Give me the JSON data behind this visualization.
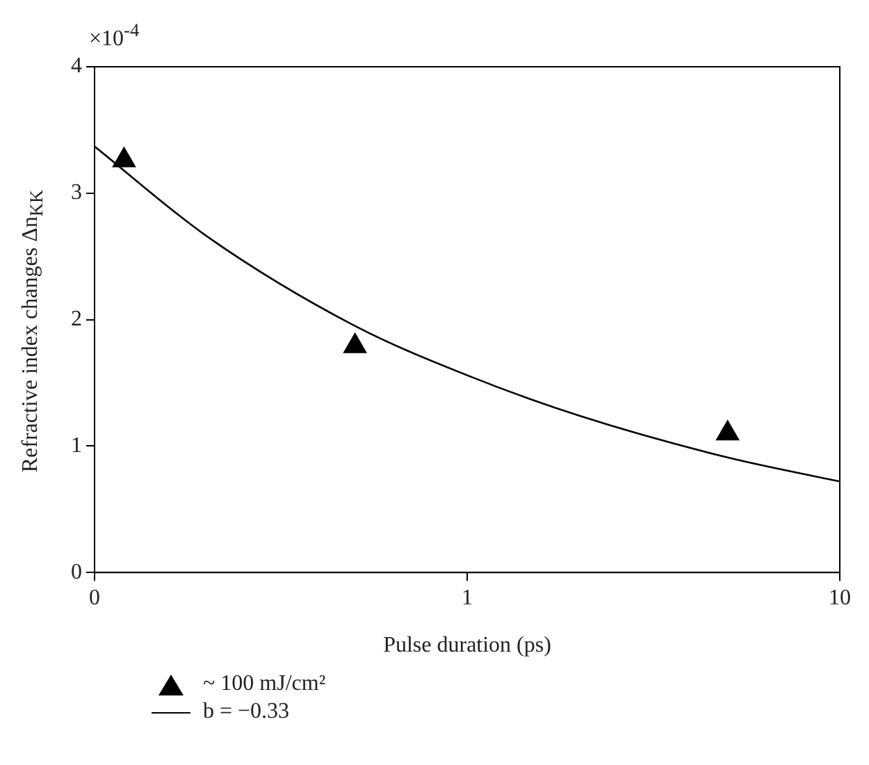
{
  "chart_data": {
    "type": "scatter",
    "xlabel": "Pulse duration (ps)",
    "ylabel": "Refractive index changes Δn$_{KK}$",
    "annotations": [
      "×10$^{-4}$"
    ],
    "series": [
      {
        "name": "~ 100 mJ/cm²",
        "color": "#000000",
        "marker": "triangle",
        "x": [
          0.12,
          0.5,
          5
        ],
        "values": [
          3.26,
          1.79,
          1.1
        ]
      },
      {
        "name": "b = −0.33",
        "type": "line",
        "color": "#000000",
        "marker": "none",
        "line_style": "solid",
        "x": [
          0.1,
          0.2,
          0.5,
          1,
          2,
          5,
          10
        ],
        "values": [
          3.37,
          2.66,
          1.95,
          1.56,
          1.24,
          0.91,
          0.72
        ]
      }
    ],
    "log": "x",
    "xlim": [
      0.1,
      10
    ],
    "xticks": [
      {
        "value": 0.1,
        "label": "0"
      },
      1,
      10
    ],
    "ylim": [
      0,
      4
    ],
    "yticks": [
      0,
      1,
      2,
      3,
      4
    ],
    "grid": false,
    "legend": "bottom left"
  }
}
